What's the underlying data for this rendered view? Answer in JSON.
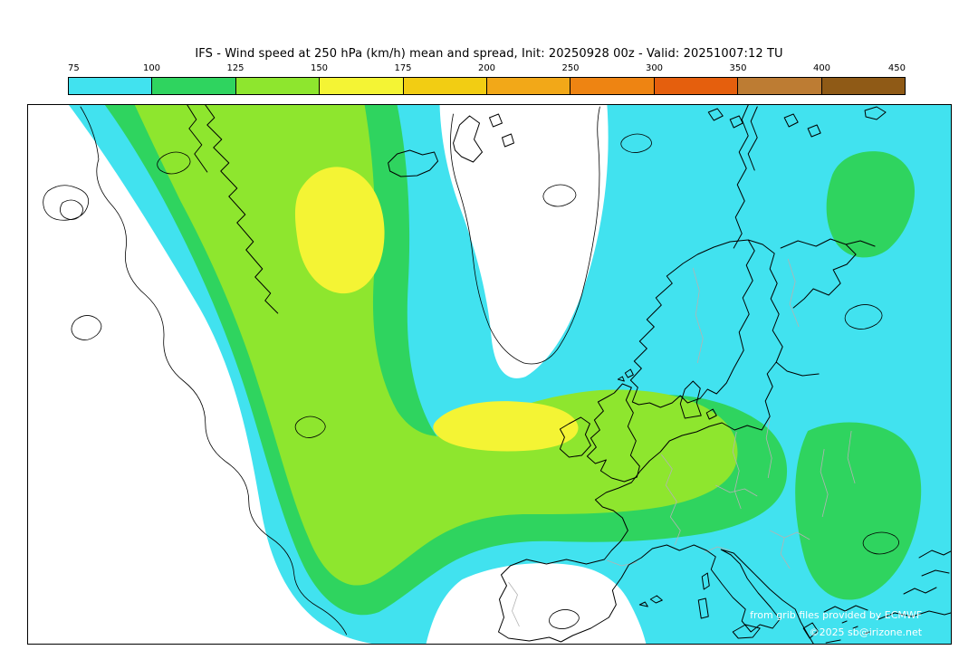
{
  "title": "IFS - Wind speed at 250 hPa (km/h) mean and spread, Init: 20250928 00z - Valid: 20251007:12 TU",
  "colorbar": {
    "unit": "km/h",
    "tick_labels": [
      "75",
      "100",
      "125",
      "150",
      "175",
      "200",
      "250",
      "300",
      "350",
      "400",
      "450"
    ],
    "segments": [
      {
        "from": 75,
        "to": 100,
        "color": "#41e2ef"
      },
      {
        "from": 100,
        "to": 125,
        "color": "#2fd45f"
      },
      {
        "from": 125,
        "to": 150,
        "color": "#8ee62e"
      },
      {
        "from": 150,
        "to": 175,
        "color": "#f4f434"
      },
      {
        "from": 175,
        "to": 200,
        "color": "#f2cd13"
      },
      {
        "from": 200,
        "to": 250,
        "color": "#f2a818"
      },
      {
        "from": 250,
        "to": 300,
        "color": "#ee8412"
      },
      {
        "from": 300,
        "to": 350,
        "color": "#e55f0d"
      },
      {
        "from": 350,
        "to": 400,
        "color": "#bd7c33"
      },
      {
        "from": 400,
        "to": 450,
        "color": "#8f5a16"
      }
    ]
  },
  "map": {
    "levels": {
      "below_75": "#ffffff",
      "l75_100": "#41e2ef",
      "l100_125": "#2fd45f",
      "l125_150": "#8ee62e",
      "l150_175": "#f4f434"
    },
    "credits": {
      "line1": "from grib files provided by ECMWF",
      "line2": "©2025 sb@irizone.net"
    }
  },
  "chart_data": {
    "type": "heatmap",
    "title": "IFS - Wind speed at 250 hPa (km/h) mean and spread",
    "init": "20250928 00z",
    "valid": "20251007:12 TU",
    "unit": "km/h",
    "legend_levels": [
      75,
      100,
      125,
      150,
      175,
      200,
      250,
      300,
      350,
      400,
      450
    ],
    "visible_shaded_range": [
      75,
      175
    ],
    "notes": "Jet band 100-175 km/h curving from NW Atlantic southeast then east across British Isles and France; yellow cores 150-175 km/h near Iceland band and west of Brittany; broad 75-100 km/h area over Scandinavia, Baltic and Mediterranean; below 75 km/h over west Atlantic, Greenland sector, Norwegian Sea tongue and Iberia."
  }
}
